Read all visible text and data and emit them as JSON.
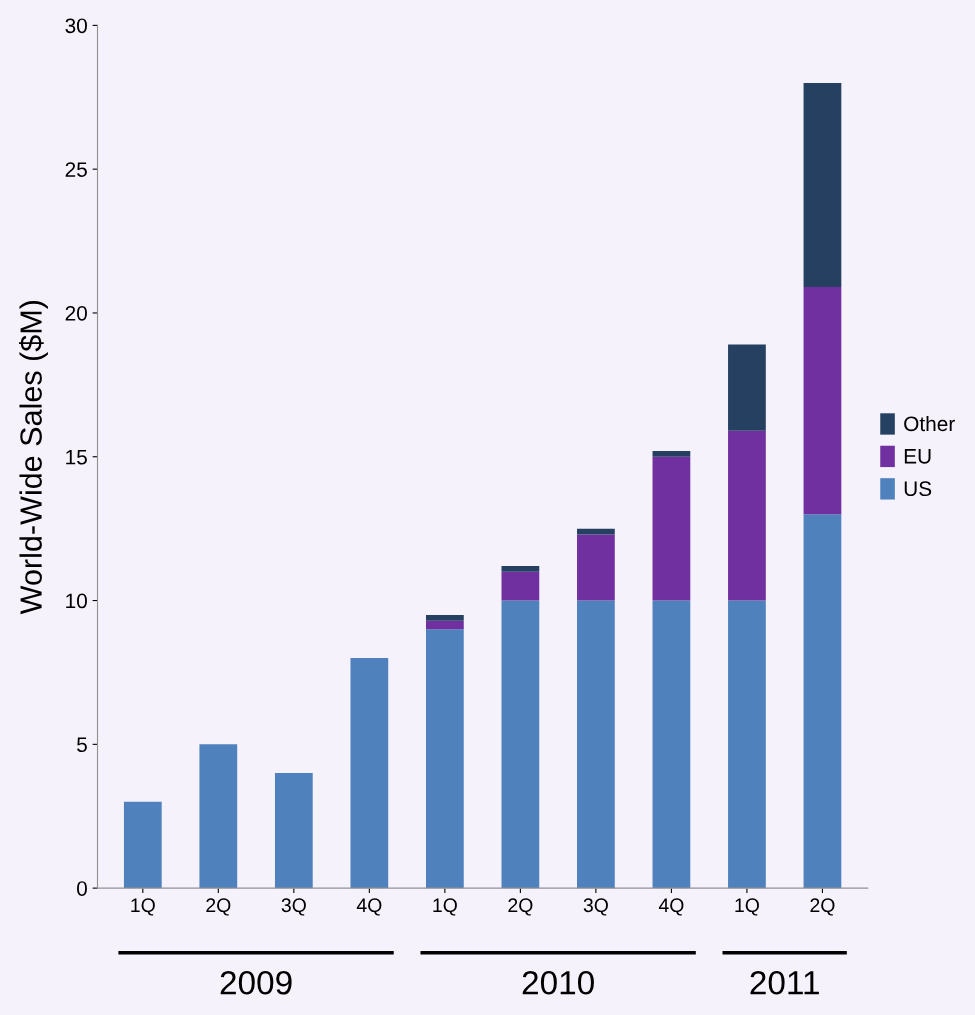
{
  "chart_data": {
    "type": "bar",
    "stacked": true,
    "ylabel": "World-Wide Sales ($M)",
    "categories": [
      "1Q",
      "2Q",
      "3Q",
      "4Q",
      "1Q",
      "2Q",
      "3Q",
      "4Q",
      "1Q",
      "2Q"
    ],
    "series": [
      {
        "name": "US",
        "color": "#4f81bd",
        "values": [
          3,
          5,
          4,
          8,
          9,
          10,
          10,
          10,
          10,
          13
        ]
      },
      {
        "name": "EU",
        "color": "#7030a0",
        "values": [
          0,
          0,
          0,
          0,
          0.3,
          1,
          2.3,
          5,
          5.9,
          7.9
        ]
      },
      {
        "name": "Other",
        "color": "#254061",
        "values": [
          0,
          0,
          0,
          0,
          0.2,
          0.2,
          0.2,
          0.2,
          3,
          7.1
        ]
      }
    ],
    "ylim": [
      0,
      30
    ],
    "yticks": [
      0,
      5,
      10,
      15,
      20,
      25,
      30
    ],
    "grid": false,
    "legend": "right",
    "annotations": [
      "2009",
      "2010",
      "2011"
    ]
  }
}
